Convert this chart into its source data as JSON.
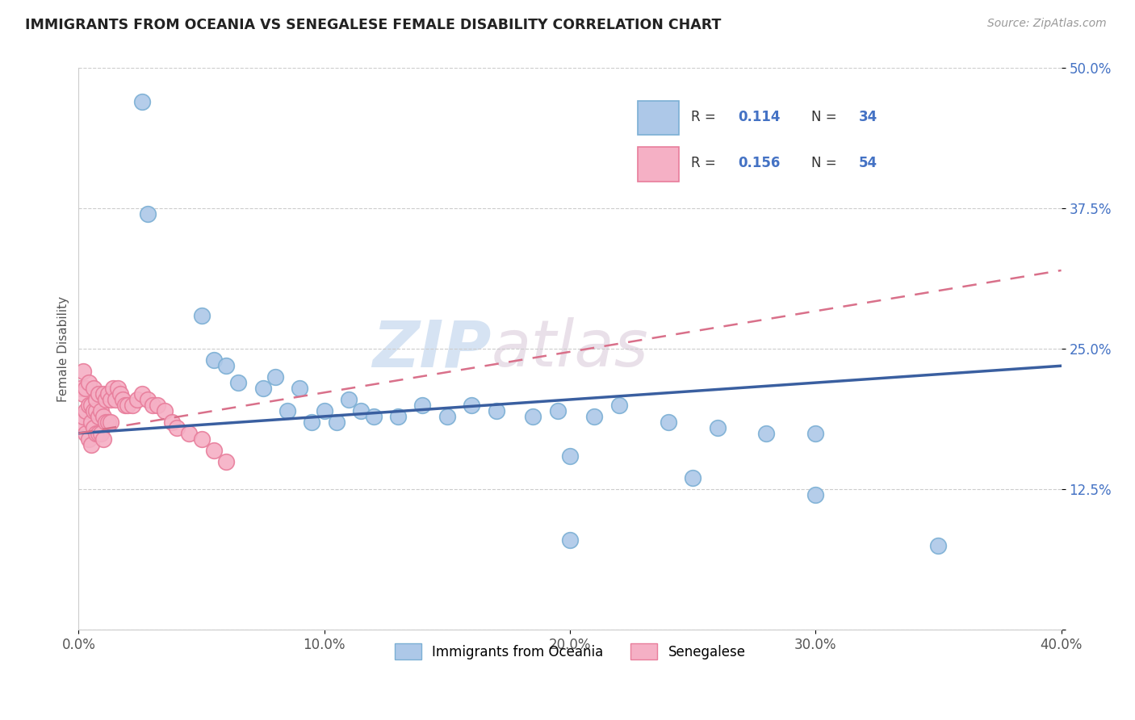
{
  "title": "IMMIGRANTS FROM OCEANIA VS SENEGALESE FEMALE DISABILITY CORRELATION CHART",
  "source": "Source: ZipAtlas.com",
  "ylabel": "Female Disability",
  "xlim": [
    0.0,
    0.4
  ],
  "ylim": [
    0.0,
    0.5
  ],
  "xticks": [
    0.0,
    0.1,
    0.2,
    0.3,
    0.4
  ],
  "xtick_labels": [
    "0.0%",
    "10.0%",
    "20.0%",
    "30.0%",
    "40.0%"
  ],
  "yticks": [
    0.0,
    0.125,
    0.25,
    0.375,
    0.5
  ],
  "ytick_labels": [
    "",
    "12.5%",
    "25.0%",
    "37.5%",
    "50.0%"
  ],
  "blue_R": 0.114,
  "blue_N": 34,
  "pink_R": 0.156,
  "pink_N": 54,
  "blue_color": "#adc8e8",
  "blue_edge": "#7bafd4",
  "pink_color": "#f5b0c5",
  "pink_edge": "#e87d9b",
  "blue_line_color": "#3a5fa0",
  "pink_line_color": "#d9708a",
  "legend_label_blue": "Immigrants from Oceania",
  "legend_label_pink": "Senegalese",
  "blue_x": [
    0.026,
    0.028,
    0.05,
    0.055,
    0.06,
    0.065,
    0.075,
    0.08,
    0.085,
    0.09,
    0.095,
    0.1,
    0.105,
    0.11,
    0.115,
    0.12,
    0.13,
    0.14,
    0.15,
    0.16,
    0.17,
    0.185,
    0.195,
    0.21,
    0.22,
    0.24,
    0.26,
    0.28,
    0.3,
    0.2,
    0.25,
    0.3,
    0.35,
    0.2
  ],
  "blue_y": [
    0.47,
    0.37,
    0.28,
    0.24,
    0.235,
    0.22,
    0.215,
    0.225,
    0.195,
    0.215,
    0.185,
    0.195,
    0.185,
    0.205,
    0.195,
    0.19,
    0.19,
    0.2,
    0.19,
    0.2,
    0.195,
    0.19,
    0.195,
    0.19,
    0.2,
    0.185,
    0.18,
    0.175,
    0.175,
    0.155,
    0.135,
    0.12,
    0.075,
    0.08
  ],
  "pink_x": [
    0.001,
    0.001,
    0.002,
    0.002,
    0.002,
    0.003,
    0.003,
    0.003,
    0.004,
    0.004,
    0.004,
    0.005,
    0.005,
    0.005,
    0.006,
    0.006,
    0.006,
    0.007,
    0.007,
    0.007,
    0.008,
    0.008,
    0.008,
    0.009,
    0.009,
    0.01,
    0.01,
    0.01,
    0.011,
    0.011,
    0.012,
    0.012,
    0.013,
    0.013,
    0.014,
    0.015,
    0.016,
    0.017,
    0.018,
    0.019,
    0.02,
    0.022,
    0.024,
    0.026,
    0.028,
    0.03,
    0.032,
    0.035,
    0.038,
    0.04,
    0.045,
    0.05,
    0.055,
    0.06
  ],
  "pink_y": [
    0.185,
    0.215,
    0.19,
    0.21,
    0.23,
    0.175,
    0.195,
    0.215,
    0.17,
    0.2,
    0.22,
    0.165,
    0.185,
    0.2,
    0.18,
    0.195,
    0.215,
    0.175,
    0.195,
    0.205,
    0.175,
    0.19,
    0.21,
    0.175,
    0.195,
    0.17,
    0.19,
    0.21,
    0.185,
    0.205,
    0.185,
    0.21,
    0.185,
    0.205,
    0.215,
    0.205,
    0.215,
    0.21,
    0.205,
    0.2,
    0.2,
    0.2,
    0.205,
    0.21,
    0.205,
    0.2,
    0.2,
    0.195,
    0.185,
    0.18,
    0.175,
    0.17,
    0.16,
    0.15
  ]
}
